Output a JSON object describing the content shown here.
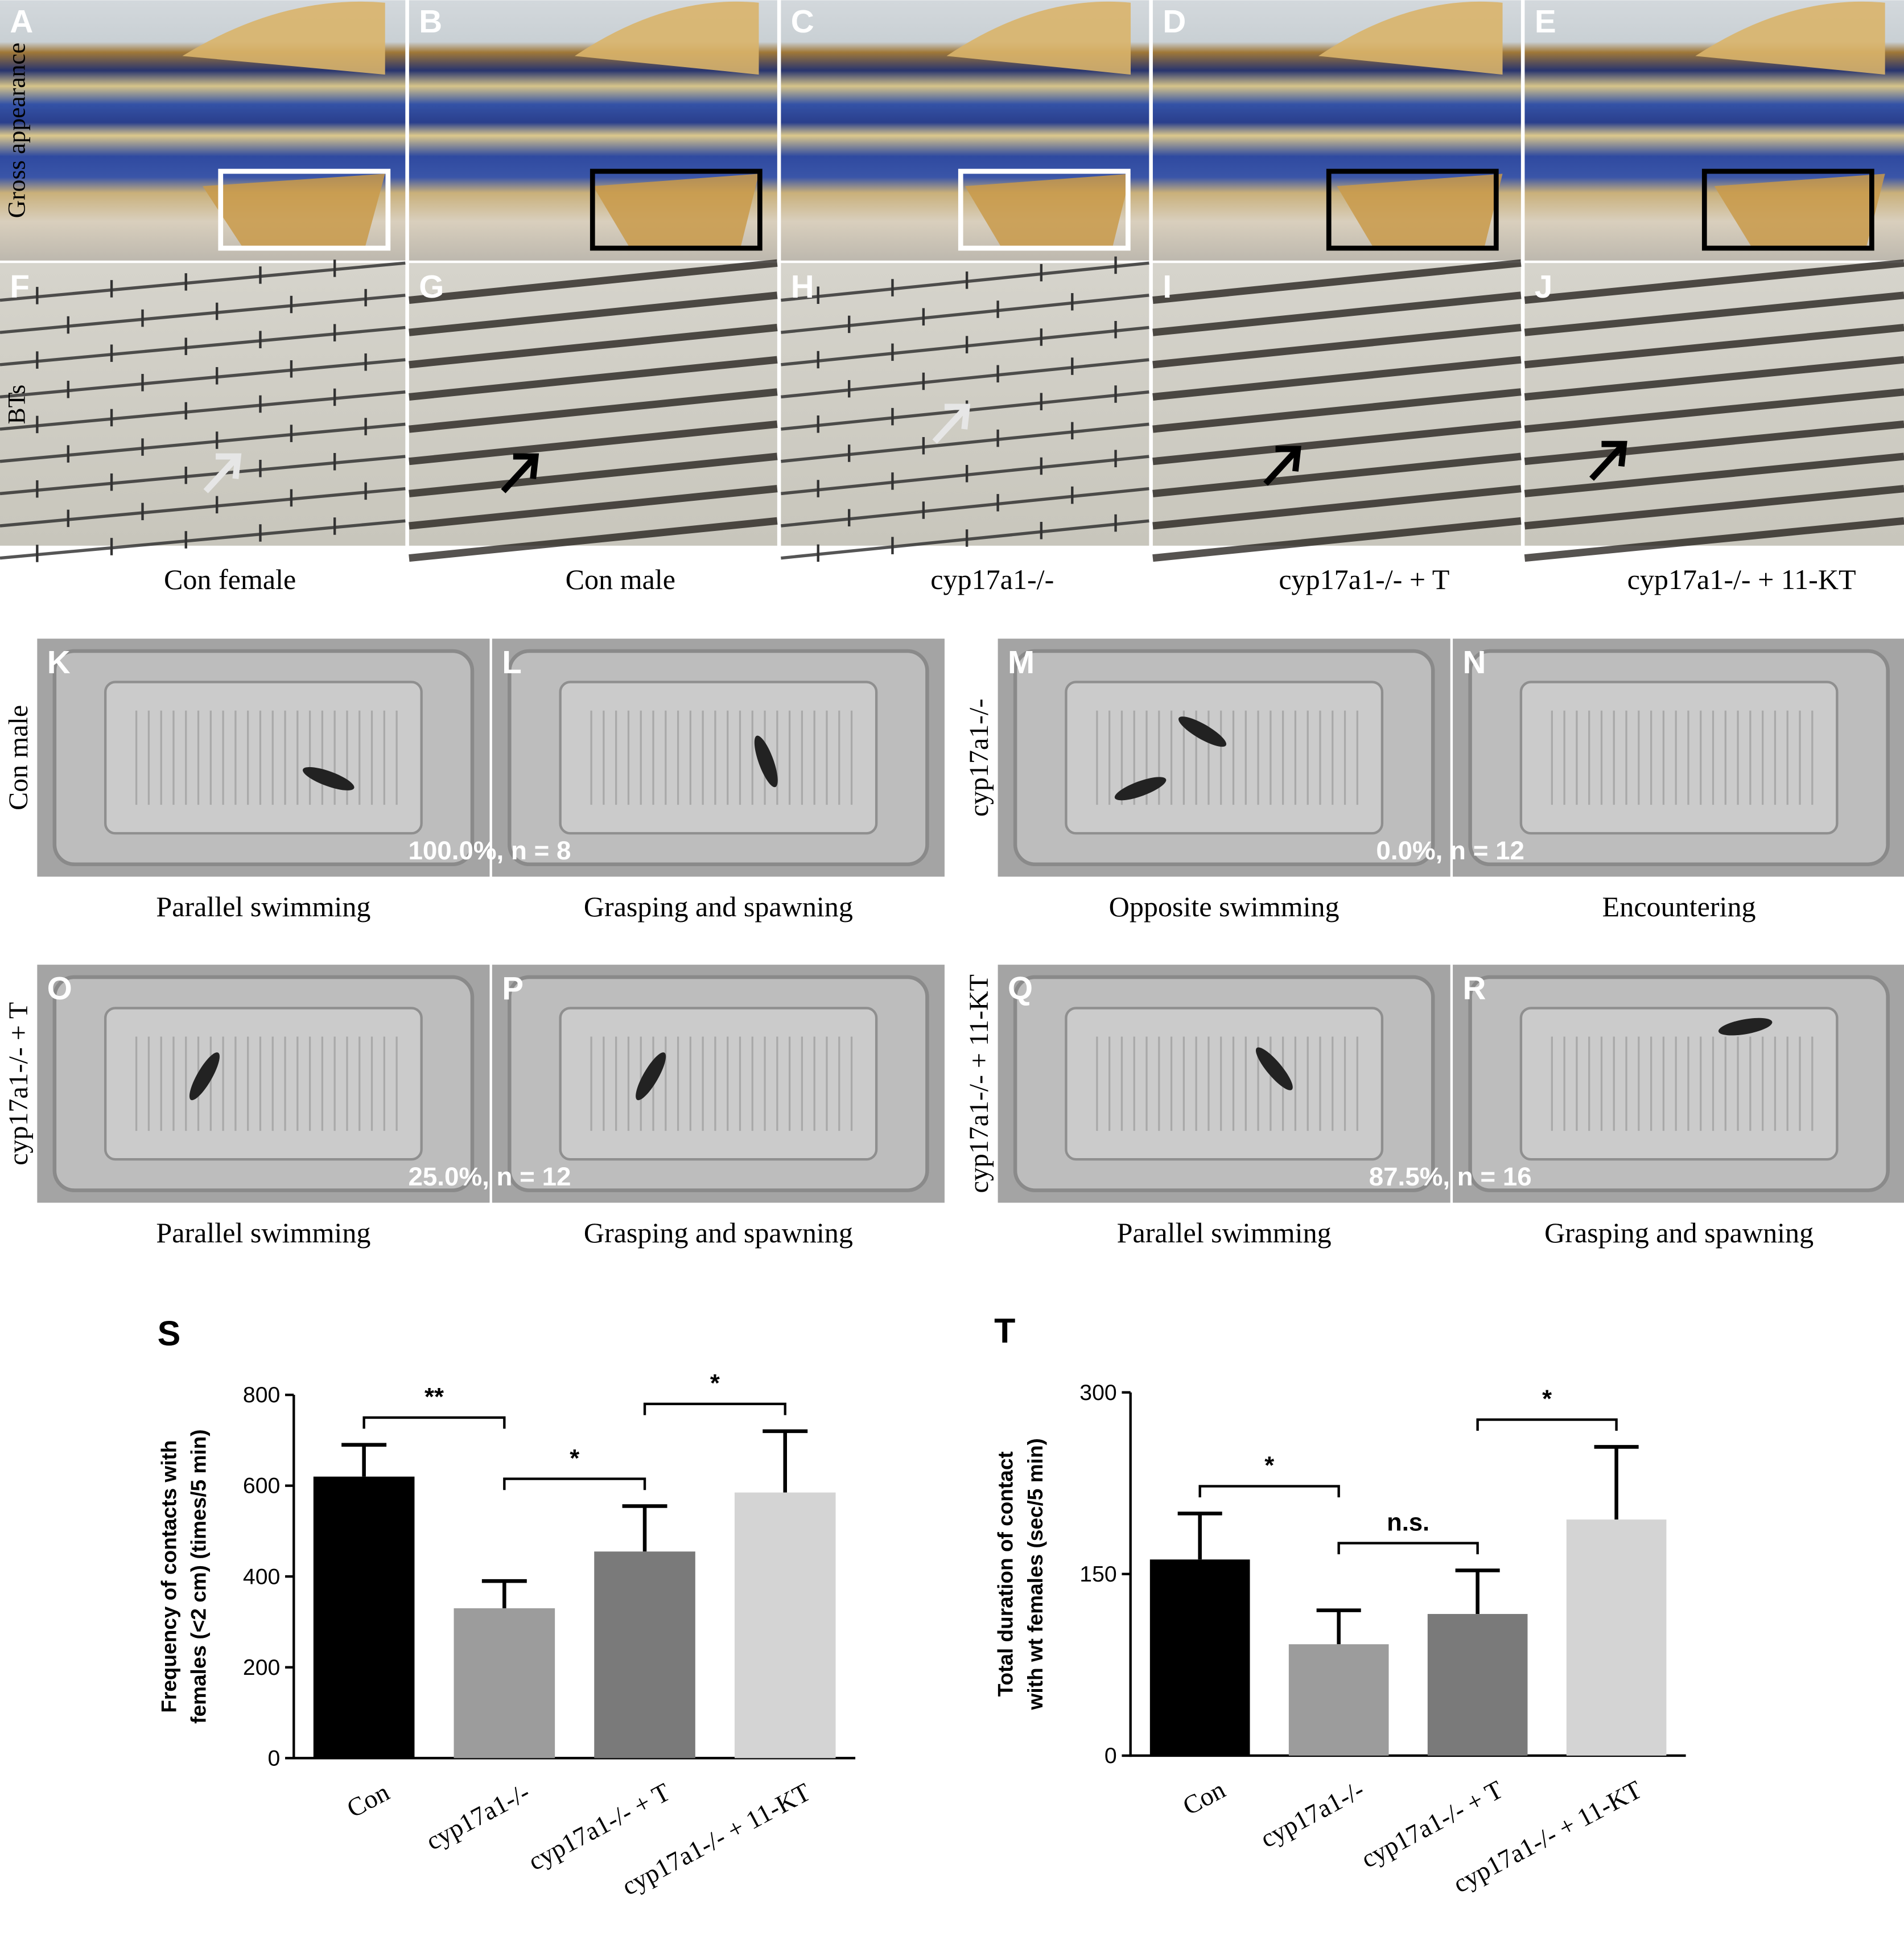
{
  "fin_figure": {
    "row_labels": [
      "Gross appearance",
      "BTs"
    ],
    "gross_letters": [
      "A",
      "B",
      "C",
      "D",
      "E"
    ],
    "bt_letters": [
      "F",
      "G",
      "H",
      "I",
      "J"
    ],
    "captions": [
      "Con female",
      "Con male",
      "cyp17a1-/-",
      "cyp17a1-/- + T",
      "cyp17a1-/- + 11-KT"
    ]
  },
  "behavior": {
    "groups": [
      {
        "row_label": "Con male",
        "letters": [
          "K",
          "L"
        ],
        "result": "100.0%, n = 8",
        "captions": [
          "Parallel swimming",
          "Grasping and spawning"
        ]
      },
      {
        "row_label": "cyp17a1-/-",
        "letters": [
          "M",
          "N"
        ],
        "result": "0.0%, n = 12",
        "captions": [
          "Opposite swimming",
          "Encountering"
        ]
      },
      {
        "row_label": "cyp17a1-/- + T",
        "letters": [
          "O",
          "P"
        ],
        "result": "25.0%, n = 12",
        "captions": [
          "Parallel swimming",
          "Grasping and spawning"
        ]
      },
      {
        "row_label": "cyp17a1-/- + 11-KT",
        "letters": [
          "Q",
          "R"
        ],
        "result": "87.5%, n = 16",
        "captions": [
          "Parallel swimming",
          "Grasping and spawning"
        ]
      }
    ]
  },
  "chart_data": [
    {
      "type": "bar",
      "panel_label": "S",
      "ylabel": [
        "Frequency of contacts with",
        "females (<2 cm) (times/5 min)"
      ],
      "categories": [
        "Con",
        "cyp17a1-/-",
        "cyp17a1-/- + T",
        "cyp17a1-/- + 11-KT"
      ],
      "values": [
        620,
        330,
        455,
        585
      ],
      "errors": [
        70,
        60,
        100,
        135
      ],
      "colors": [
        "#000000",
        "#9c9c9c",
        "#7a7a7a",
        "#d4d4d4"
      ],
      "ylim": [
        0,
        800
      ],
      "yticks": [
        0,
        200,
        400,
        600,
        800
      ],
      "annotations": [
        "**",
        "*",
        "*"
      ]
    },
    {
      "type": "bar",
      "panel_label": "T",
      "ylabel": [
        "Total duration of contact",
        "with wt females (sec/5 min)"
      ],
      "categories": [
        "Con",
        "cyp17a1-/-",
        "cyp17a1-/- + T",
        "cyp17a1-/- + 11-KT"
      ],
      "values": [
        162,
        92,
        117,
        195
      ],
      "errors": [
        38,
        28,
        36,
        60
      ],
      "colors": [
        "#000000",
        "#9c9c9c",
        "#7a7a7a",
        "#d4d4d4"
      ],
      "ylim": [
        0,
        300
      ],
      "yticks": [
        0,
        150,
        300
      ],
      "annotations": [
        "*",
        "n.s.",
        "*"
      ]
    }
  ]
}
